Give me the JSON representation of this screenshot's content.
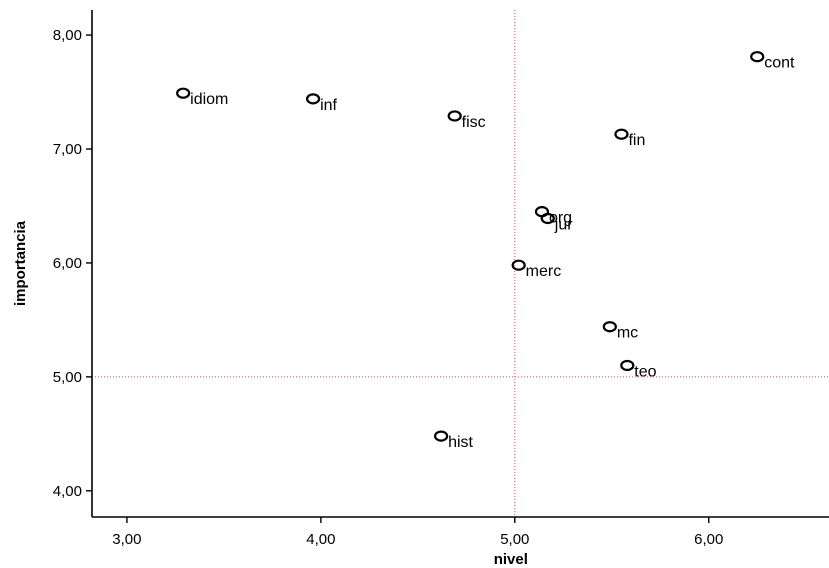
{
  "chart_data": {
    "type": "scatter",
    "xlabel": "nivel",
    "ylabel": "importancia",
    "xlim": [
      2.82,
      6.62
    ],
    "ylim": [
      3.77,
      8.22
    ],
    "x_ticks": [
      3.0,
      4.0,
      5.0,
      6.0
    ],
    "x_tick_labels": [
      "3,00",
      "4,00",
      "5,00",
      "6,00"
    ],
    "y_ticks": [
      4.0,
      5.0,
      6.0,
      7.0,
      8.0
    ],
    "y_tick_labels": [
      "4,00",
      "5,00",
      "6,00",
      "7,00",
      "8,00"
    ],
    "reference_lines": {
      "x": 5.0,
      "y": 5.0,
      "color": "#e8463c",
      "style": "dotted"
    },
    "grid": false,
    "legend": "none",
    "marker": "hollow-circle",
    "points": [
      {
        "label": "cont",
        "x": 6.25,
        "y": 7.81
      },
      {
        "label": "idiom",
        "x": 3.29,
        "y": 7.49
      },
      {
        "label": "inf",
        "x": 3.96,
        "y": 7.44
      },
      {
        "label": "fisc",
        "x": 4.69,
        "y": 7.29
      },
      {
        "label": "fin",
        "x": 5.55,
        "y": 7.13
      },
      {
        "label": "org",
        "x": 5.14,
        "y": 6.45
      },
      {
        "label": "jur",
        "x": 5.17,
        "y": 6.39
      },
      {
        "label": "merc",
        "x": 5.02,
        "y": 5.98
      },
      {
        "label": "mc",
        "x": 5.49,
        "y": 5.44
      },
      {
        "label": "teo",
        "x": 5.58,
        "y": 5.1
      },
      {
        "label": "hist",
        "x": 4.62,
        "y": 4.48
      }
    ]
  }
}
